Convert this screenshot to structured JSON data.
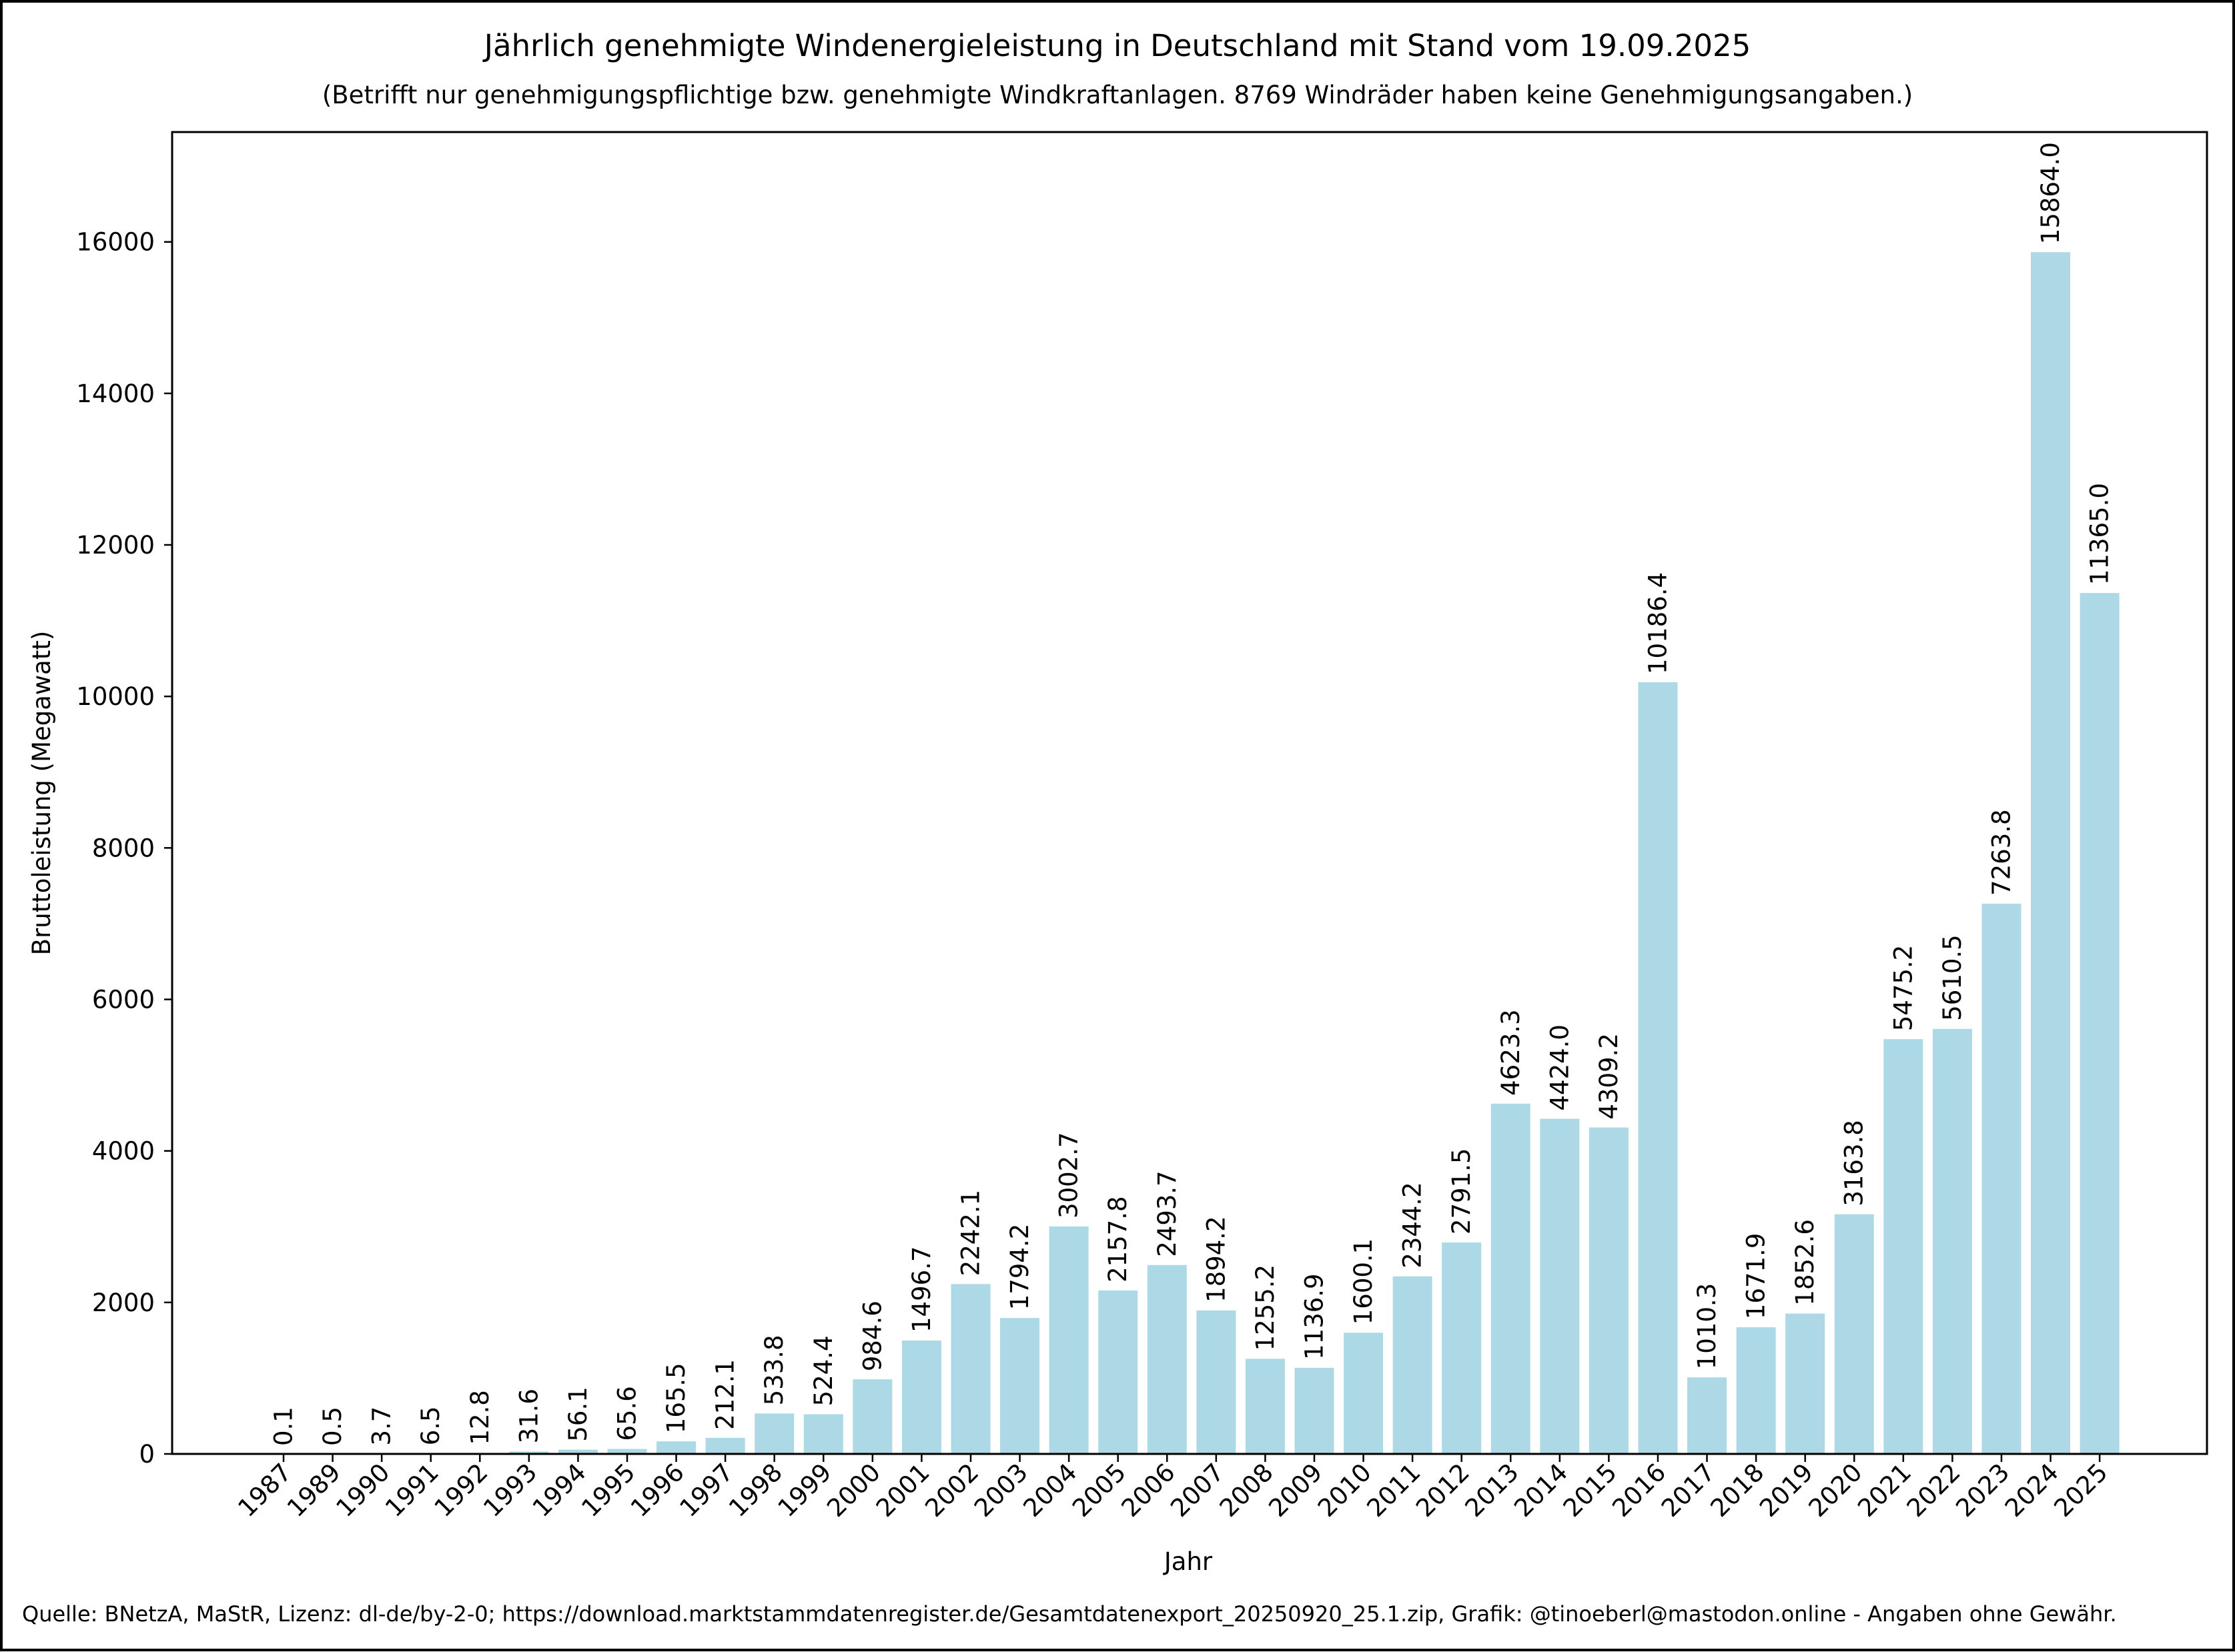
{
  "chart_data": {
    "type": "bar",
    "title": "Jährlich genehmigte Windenergieleistung in Deutschland mit Stand vom 19.09.2025",
    "subtitle": "(Betrifft nur genehmigungspflichtige bzw. genehmigte Windkraftanlagen. 8769 Windräder haben keine Genehmigungsangaben.)",
    "xlabel": "Jahr",
    "ylabel": "Bruttoleistung (Megawatt)",
    "ylim": [
      0,
      17450
    ],
    "yticks": [
      0,
      2000,
      4000,
      6000,
      8000,
      10000,
      12000,
      14000,
      16000
    ],
    "grid": false,
    "bar_color": "#add8e6",
    "categories": [
      "1987",
      "1989",
      "1990",
      "1991",
      "1992",
      "1993",
      "1994",
      "1995",
      "1996",
      "1997",
      "1998",
      "1999",
      "2000",
      "2001",
      "2002",
      "2003",
      "2004",
      "2005",
      "2006",
      "2007",
      "2008",
      "2009",
      "2010",
      "2011",
      "2012",
      "2013",
      "2014",
      "2015",
      "2016",
      "2017",
      "2018",
      "2019",
      "2020",
      "2021",
      "2022",
      "2023",
      "2024",
      "2025"
    ],
    "values": [
      0.1,
      0.5,
      3.7,
      6.5,
      12.8,
      31.6,
      56.1,
      65.6,
      165.5,
      212.1,
      533.8,
      524.4,
      984.6,
      1496.7,
      2242.1,
      1794.2,
      3002.7,
      2157.8,
      2493.7,
      1894.2,
      1255.2,
      1136.9,
      1600.1,
      2344.2,
      2791.5,
      4623.3,
      4424.0,
      4309.2,
      10186.4,
      1010.3,
      1671.9,
      1852.6,
      3163.8,
      5475.2,
      5610.5,
      7263.8,
      15864.0,
      11365.0
    ],
    "value_labels": [
      "0.1",
      "0.5",
      "3.7",
      "6.5",
      "12.8",
      "31.6",
      "56.1",
      "65.6",
      "165.5",
      "212.1",
      "533.8",
      "524.4",
      "984.6",
      "1496.7",
      "2242.1",
      "1794.2",
      "3002.7",
      "2157.8",
      "2493.7",
      "1894.2",
      "1255.2",
      "1136.9",
      "1600.1",
      "2344.2",
      "2791.5",
      "4623.3",
      "4424.0",
      "4309.2",
      "10186.4",
      "1010.3",
      "1671.9",
      "1852.6",
      "3163.8",
      "5475.2",
      "5610.5",
      "7263.8",
      "15864.0",
      "11365.0"
    ],
    "source": "Quelle: BNetzA, MaStR, Lizenz: dl-de/by-2-0; https://download.marktstammdatenregister.de/Gesamtdatenexport_20250920_25.1.zip, Grafik: @tinoeberl@mastodon.online - Angaben ohne Gewähr."
  }
}
